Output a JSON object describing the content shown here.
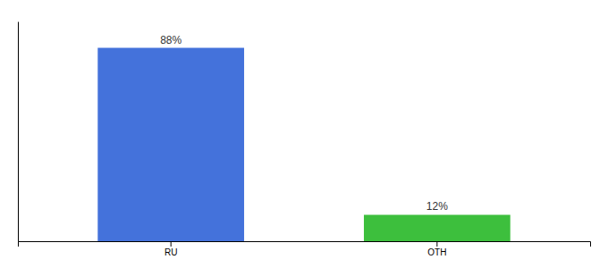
{
  "chart_data": {
    "type": "bar",
    "categories": [
      "RU",
      "OTH"
    ],
    "values": [
      88,
      12
    ],
    "colors": [
      "#4472db",
      "#3dbf3d"
    ],
    "ylim": [
      0,
      100
    ],
    "data_labels": true,
    "value_labels": [
      "88%",
      "12%"
    ],
    "tick_labels": "x"
  }
}
